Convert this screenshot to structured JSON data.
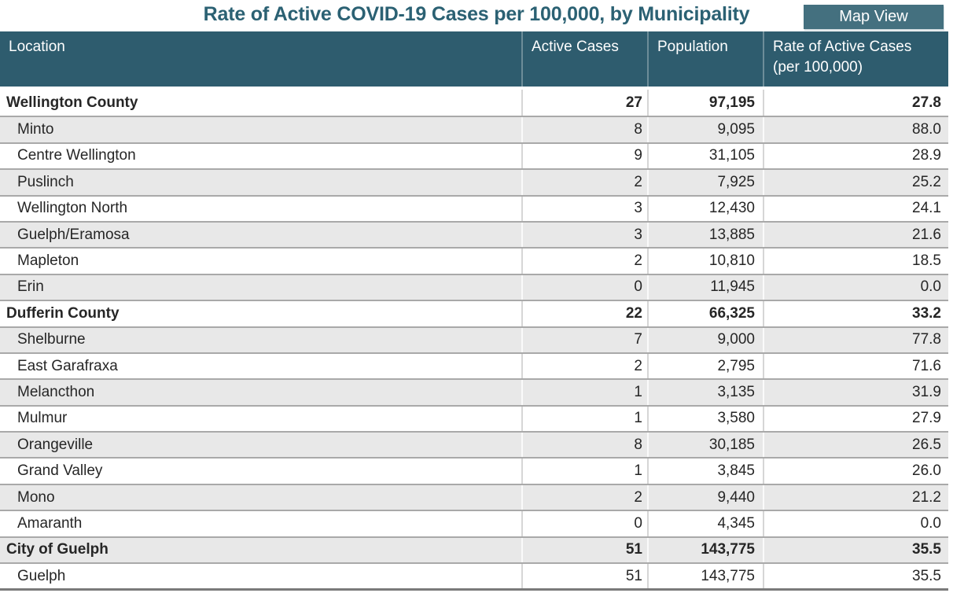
{
  "title": "Rate of Active COVID-19 Cases per 100,000, by Municipality",
  "map_view_button": "Map View",
  "colors": {
    "header_bg": "#2e5c6e",
    "title_text": "#2b6173",
    "button_bg": "#44707f",
    "button_text": "#ffffff",
    "header_text": "#ffffff",
    "row_alt_bg": "#e8e8e8",
    "row_border": "#a9a9a9",
    "table_bottom_border": "#7a7a7a",
    "body_text": "#262626"
  },
  "table": {
    "columns": [
      {
        "label": "Location",
        "sublabel": ""
      },
      {
        "label": "Active Cases",
        "sublabel": ""
      },
      {
        "label": "Population",
        "sublabel": ""
      },
      {
        "label": "Rate of Active Cases",
        "sublabel": "(per 100,000)"
      }
    ],
    "rows": [
      {
        "location": "Wellington County",
        "active_cases": "27",
        "population": "97,195",
        "rate": "27.8",
        "group": true
      },
      {
        "location": "Minto",
        "active_cases": "8",
        "population": "9,095",
        "rate": "88.0",
        "group": false
      },
      {
        "location": "Centre Wellington",
        "active_cases": "9",
        "population": "31,105",
        "rate": "28.9",
        "group": false
      },
      {
        "location": "Puslinch",
        "active_cases": "2",
        "population": "7,925",
        "rate": "25.2",
        "group": false
      },
      {
        "location": "Wellington North",
        "active_cases": "3",
        "population": "12,430",
        "rate": "24.1",
        "group": false
      },
      {
        "location": "Guelph/Eramosa",
        "active_cases": "3",
        "population": "13,885",
        "rate": "21.6",
        "group": false
      },
      {
        "location": "Mapleton",
        "active_cases": "2",
        "population": "10,810",
        "rate": "18.5",
        "group": false
      },
      {
        "location": "Erin",
        "active_cases": "0",
        "population": "11,945",
        "rate": "0.0",
        "group": false
      },
      {
        "location": "Dufferin County",
        "active_cases": "22",
        "population": "66,325",
        "rate": "33.2",
        "group": true
      },
      {
        "location": "Shelburne",
        "active_cases": "7",
        "population": "9,000",
        "rate": "77.8",
        "group": false
      },
      {
        "location": "East Garafraxa",
        "active_cases": "2",
        "population": "2,795",
        "rate": "71.6",
        "group": false
      },
      {
        "location": "Melancthon",
        "active_cases": "1",
        "population": "3,135",
        "rate": "31.9",
        "group": false
      },
      {
        "location": "Mulmur",
        "active_cases": "1",
        "population": "3,580",
        "rate": "27.9",
        "group": false
      },
      {
        "location": "Orangeville",
        "active_cases": "8",
        "population": "30,185",
        "rate": "26.5",
        "group": false
      },
      {
        "location": "Grand Valley",
        "active_cases": "1",
        "population": "3,845",
        "rate": "26.0",
        "group": false
      },
      {
        "location": "Mono",
        "active_cases": "2",
        "population": "9,440",
        "rate": "21.2",
        "group": false
      },
      {
        "location": "Amaranth",
        "active_cases": "0",
        "population": "4,345",
        "rate": "0.0",
        "group": false
      },
      {
        "location": "City of Guelph",
        "active_cases": "51",
        "population": "143,775",
        "rate": "35.5",
        "group": true
      },
      {
        "location": "Guelph",
        "active_cases": "51",
        "population": "143,775",
        "rate": "35.5",
        "group": false
      }
    ]
  }
}
